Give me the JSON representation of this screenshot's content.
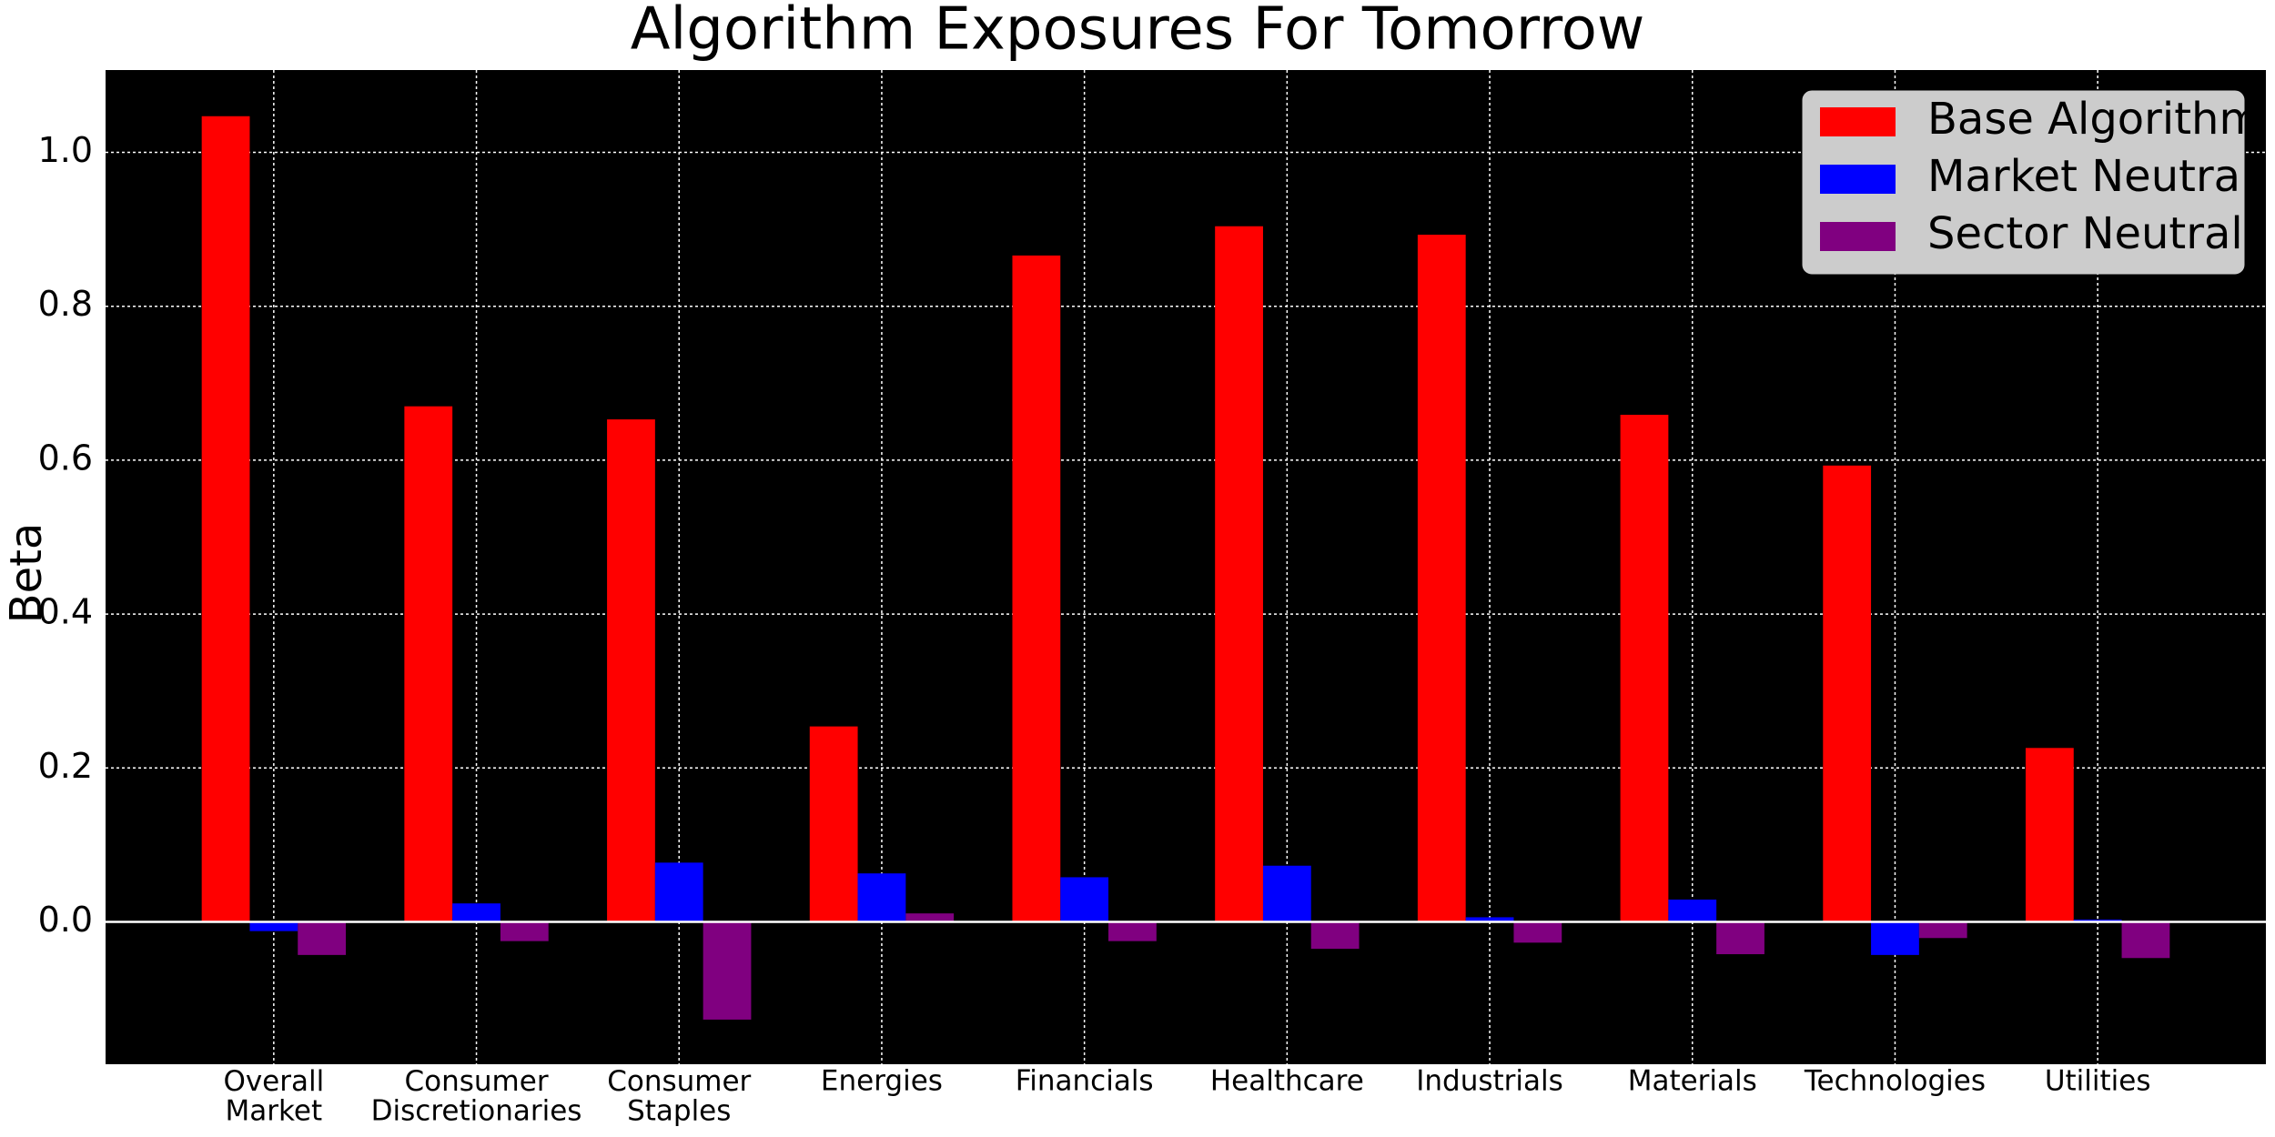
{
  "chart_data": {
    "type": "bar",
    "title": "Algorithm Exposures For Tomorrow",
    "y_label": "Beta",
    "categories": [
      "Overall\nMarket",
      "Consumer\nDiscretionaries",
      "Consumer\nStaples",
      "Energies",
      "Financials",
      "Healthcare",
      "Industrials",
      "Materials",
      "Technologies",
      "Utilities"
    ],
    "series": [
      {
        "name": "Base Algorithm",
        "color": "#ff0000",
        "values": [
          1.047,
          0.67,
          0.653,
          0.254,
          0.866,
          0.904,
          0.893,
          0.659,
          0.593,
          0.226
        ]
      },
      {
        "name": "Market Neutral",
        "color": "#0000ff",
        "values": [
          -0.012,
          0.024,
          0.077,
          0.063,
          0.058,
          0.073,
          0.006,
          0.029,
          -0.043,
          0.003
        ]
      },
      {
        "name": "Sector Neutral",
        "color": "#800080",
        "values": [
          -0.043,
          -0.025,
          -0.127,
          0.011,
          -0.025,
          -0.035,
          -0.027,
          -0.042,
          -0.021,
          -0.047
        ]
      }
    ],
    "ylim": [
      -0.185,
      1.107
    ],
    "yticks": [
      {
        "value": 0,
        "label": "0.0"
      },
      0.2,
      0.4,
      0.6,
      0.8,
      {
        "value": 1,
        "label": "1.0"
      }
    ],
    "grid": true,
    "legend": "upper right",
    "background": "#000000"
  }
}
